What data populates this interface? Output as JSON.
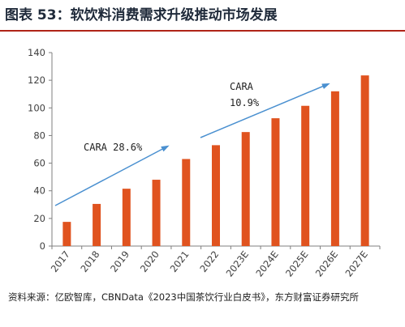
{
  "header": {
    "title": "图表 53：软饮料消费需求升级推动市场发展"
  },
  "footer": {
    "source": "资料来源：亿欧智库，CBNData《2023中国茶饮行业白皮书》，东方财富证券研究所"
  },
  "chart_data": {
    "type": "bar",
    "categories": [
      "2017",
      "2018",
      "2019",
      "2020",
      "2021",
      "2022",
      "2023E",
      "2024E",
      "2025E",
      "2026E",
      "2027E"
    ],
    "series": [
      {
        "values": [
          17.5,
          30.5,
          41.5,
          48,
          63,
          73,
          82.5,
          92.5,
          101.5,
          112,
          123.5
        ]
      }
    ],
    "ylim": [
      0,
      140
    ],
    "yticks": [
      0,
      20,
      40,
      60,
      80,
      100,
      120,
      140
    ],
    "grid": false,
    "legend": "none",
    "bar_color": "#e0531f",
    "arrow_color": "#4a90d0",
    "annotations": [
      {
        "label": "CARA 28.6%"
      },
      {
        "line1": "CARA",
        "line2": "10.9%"
      }
    ]
  }
}
